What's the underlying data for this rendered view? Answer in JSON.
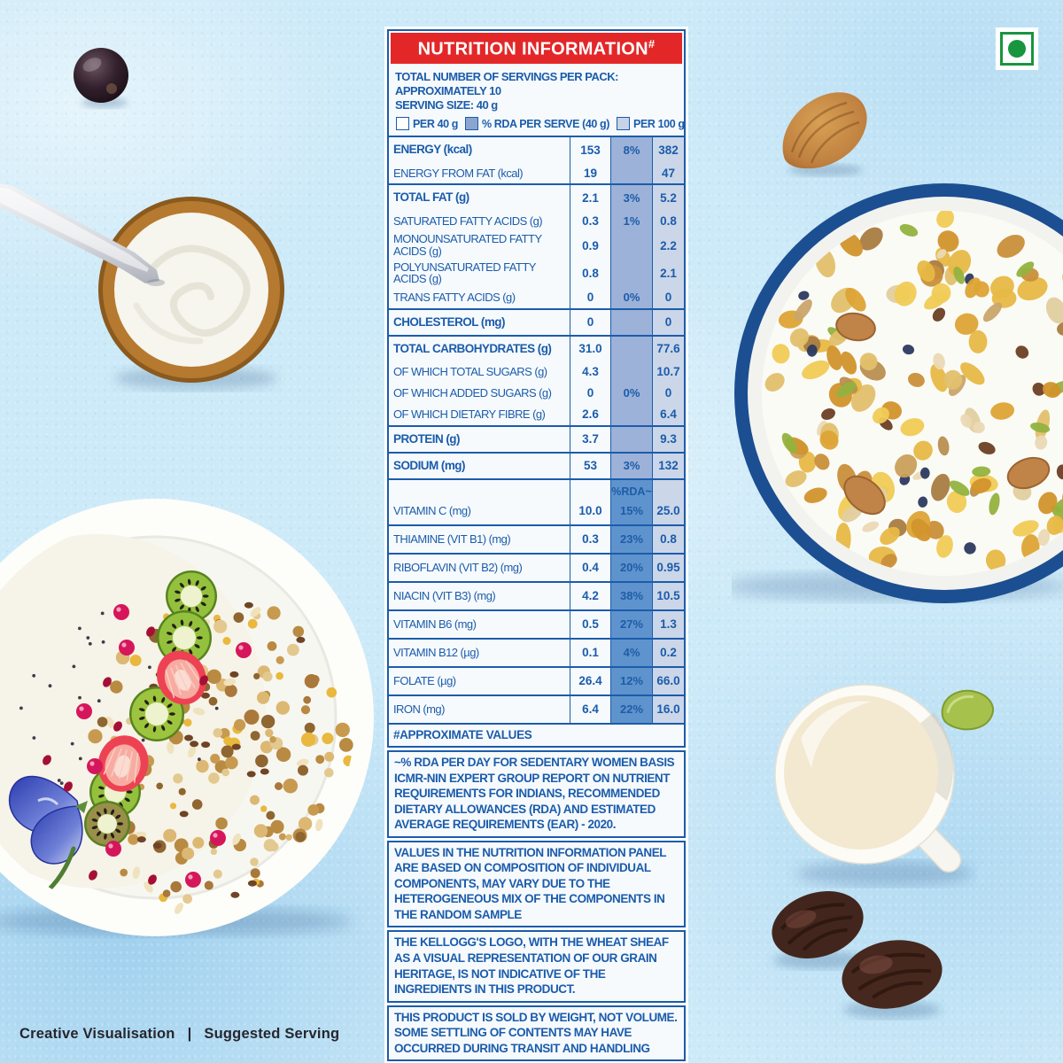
{
  "panel": {
    "title": "NUTRITION INFORMATION",
    "title_sup": "#",
    "servings_line": "TOTAL NUMBER OF SERVINGS PER PACK: APPROXIMATELY 10",
    "serving_size_line": "SERVING SIZE: 40 g",
    "legend": [
      {
        "label": "PER 40 g",
        "swatch": "white"
      },
      {
        "label": "% RDA PER SERVE (40 g)",
        "swatch": "medium-blue"
      },
      {
        "label": "PER 100 g",
        "swatch": "light-blue"
      }
    ],
    "table": {
      "rows": [
        {
          "label": "ENERGY (kcal)",
          "v40": "153",
          "rda": "8%",
          "v100": "382",
          "bold": true
        },
        {
          "label": "ENERGY FROM FAT (kcal)",
          "v40": "19",
          "rda": "",
          "v100": "47"
        },
        {
          "label": "TOTAL FAT (g)",
          "v40": "2.1",
          "rda": "3%",
          "v100": "5.2",
          "bold": true,
          "gs": true
        },
        {
          "label": "SATURATED FATTY ACIDS (g)",
          "v40": "0.3",
          "rda": "1%",
          "v100": "0.8"
        },
        {
          "label": "MONOUNSATURATED FATTY ACIDS (g)",
          "v40": "0.9",
          "rda": "",
          "v100": "2.2"
        },
        {
          "label": "POLYUNSATURATED FATTY ACIDS (g)",
          "v40": "0.8",
          "rda": "",
          "v100": "2.1"
        },
        {
          "label": "TRANS FATTY ACIDS (g)",
          "v40": "0",
          "rda": "0%",
          "v100": "0"
        },
        {
          "label": "CHOLESTEROL (mg)",
          "v40": "0",
          "rda": "",
          "v100": "0",
          "bold": true,
          "gs": true
        },
        {
          "label": "TOTAL CARBOHYDRATES (g)",
          "v40": "31.0",
          "rda": "",
          "v100": "77.6",
          "bold": true,
          "gs": true
        },
        {
          "label": "OF WHICH TOTAL SUGARS (g)",
          "v40": "4.3",
          "rda": "",
          "v100": "10.7"
        },
        {
          "label": "OF WHICH ADDED SUGARS (g)",
          "v40": "0",
          "rda": "0%",
          "v100": "0"
        },
        {
          "label": "OF WHICH DIETARY FIBRE (g)",
          "v40": "2.6",
          "rda": "",
          "v100": "6.4"
        },
        {
          "label": "PROTEIN (g)",
          "v40": "3.7",
          "rda": "",
          "v100": "9.3",
          "bold": true,
          "gs": true
        },
        {
          "label": "SODIUM (mg)",
          "v40": "53",
          "rda": "3%",
          "v100": "132",
          "bold": true,
          "gs": true
        },
        {
          "label": "",
          "v40": "",
          "rda": "%RDA~",
          "v100": "",
          "vit": true,
          "hdr": true,
          "gs": true
        },
        {
          "label": "VITAMIN C (mg)",
          "v40": "10.0",
          "rda": "15%",
          "v100": "25.0",
          "vit": true
        },
        {
          "label": "THIAMINE (VIT B1) (mg)",
          "v40": "0.3",
          "rda": "23%",
          "v100": "0.8",
          "vit": true,
          "gs": true
        },
        {
          "label": "RIBOFLAVIN (VIT B2) (mg)",
          "v40": "0.4",
          "rda": "20%",
          "v100": "0.95",
          "vit": true,
          "gs": true
        },
        {
          "label": "NIACIN (VIT B3) (mg)",
          "v40": "4.2",
          "rda": "38%",
          "v100": "10.5",
          "vit": true,
          "gs": true
        },
        {
          "label": "VITAMIN B6 (mg)",
          "v40": "0.5",
          "rda": "27%",
          "v100": "1.3",
          "vit": true,
          "gs": true
        },
        {
          "label": "VITAMIN B12 (µg)",
          "v40": "0.1",
          "rda": "4%",
          "v100": "0.2",
          "vit": true,
          "gs": true
        },
        {
          "label": "FOLATE (µg)",
          "v40": "26.4",
          "rda": "12%",
          "v100": "66.0",
          "vit": true,
          "gs": true
        },
        {
          "label": "IRON (mg)",
          "v40": "6.4",
          "rda": "22%",
          "v100": "16.0",
          "vit": true,
          "gs": true
        },
        {
          "label": "#APPROXIMATE VALUES",
          "full": true,
          "gs": true
        }
      ]
    },
    "notes": [
      "~% RDA PER DAY FOR SEDENTARY WOMEN BASIS ICMR-NIN EXPERT GROUP REPORT ON NUTRIENT REQUIREMENTS FOR INDIANS, RECOMMENDED DIETARY ALLOWANCES (RDA) AND ESTIMATED AVERAGE REQUIREMENTS (EAR) - 2020.",
      "VALUES IN THE NUTRITION INFORMATION PANEL ARE BASED ON COMPOSITION OF INDIVIDUAL COMPONENTS, MAY VARY DUE TO THE HETEROGENEOUS MIX OF THE COMPONENTS IN THE RANDOM SAMPLE",
      "THE KELLOGG'S LOGO, WITH THE WHEAT SHEAF AS A VISUAL REPRESENTATION OF OUR GRAIN HERITAGE, IS NOT INDICATIVE OF THE INGREDIENTS IN THIS PRODUCT.",
      "THIS PRODUCT IS SOLD BY WEIGHT, NOT VOLUME. SOME SETTLING OF CONTENTS MAY HAVE OCCURRED DURING TRANSIT AND HANDLING"
    ]
  },
  "footer": {
    "left": "Creative Visualisation",
    "separator": "|",
    "right": "Suggested Serving"
  },
  "colors": {
    "accent_red": "#e32728",
    "text_blue": "#1b5cab",
    "rda_column": "#9db2d8",
    "rda_column_vitamins": "#5f93cd",
    "per100_column": "#cbd6e9",
    "veg_mark_green": "#18953f",
    "background_blue": "#cdeaf8"
  },
  "decor": {
    "items": [
      "blackcurrant-berry",
      "yogurt-bowl-with-spoon",
      "muesli-bowl",
      "breakfast-plate-with-fruits",
      "almond",
      "milk-jug",
      "pumpkin-seed",
      "dates",
      "vegetarian-mark"
    ]
  }
}
